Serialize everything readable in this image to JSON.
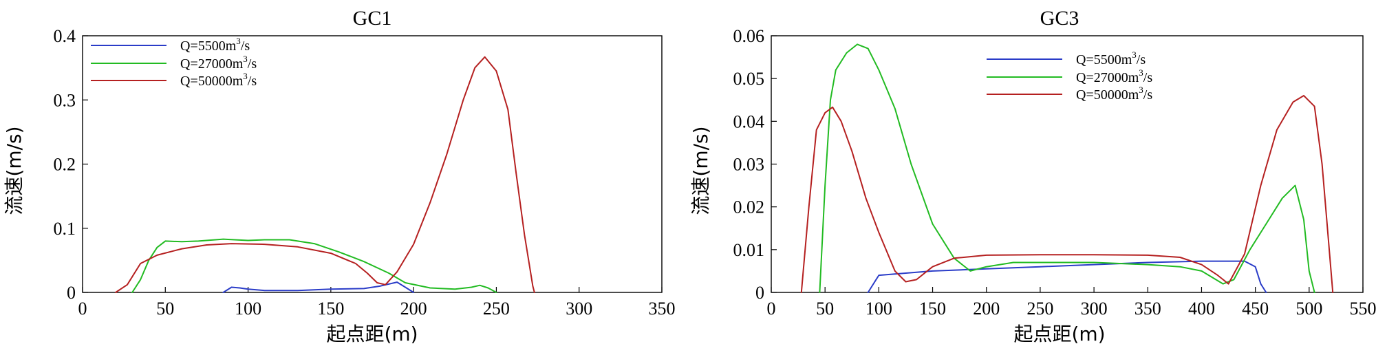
{
  "chart_data": [
    {
      "type": "line",
      "title": "GC1",
      "xlabel": "起点距(m)",
      "ylabel": "流速(m/s)",
      "xlim": [
        0,
        350
      ],
      "ylim": [
        0,
        0.4
      ],
      "xticks": [
        "0",
        "50",
        "100",
        "150",
        "200",
        "250",
        "300",
        "350"
      ],
      "yticks": [
        "0",
        "0.1",
        "0.2",
        "0.3",
        "0.4"
      ],
      "legend_position": "top-left",
      "series": [
        {
          "name": "Q=5500m3/s",
          "name_main_a": "Q=5500m",
          "name_sup": "3",
          "name_main_b": "/s",
          "color": "#2a3cc8",
          "points": [
            [
              85,
              0
            ],
            [
              90,
              0.008
            ],
            [
              95,
              0.007
            ],
            [
              100,
              0.005
            ],
            [
              110,
              0.003
            ],
            [
              130,
              0.003
            ],
            [
              150,
              0.005
            ],
            [
              170,
              0.006
            ],
            [
              180,
              0.01
            ],
            [
              190,
              0.016
            ],
            [
              195,
              0.008
            ],
            [
              200,
              0
            ]
          ]
        },
        {
          "name": "Q=27000m3/s",
          "name_main_a": "Q=27000m",
          "name_sup": "3",
          "name_main_b": "/s",
          "color": "#22bb22",
          "points": [
            [
              30,
              0
            ],
            [
              35,
              0.02
            ],
            [
              40,
              0.05
            ],
            [
              45,
              0.07
            ],
            [
              50,
              0.08
            ],
            [
              60,
              0.079
            ],
            [
              70,
              0.08
            ],
            [
              85,
              0.083
            ],
            [
              100,
              0.081
            ],
            [
              110,
              0.082
            ],
            [
              125,
              0.082
            ],
            [
              140,
              0.076
            ],
            [
              155,
              0.063
            ],
            [
              170,
              0.048
            ],
            [
              185,
              0.03
            ],
            [
              195,
              0.015
            ],
            [
              210,
              0.007
            ],
            [
              225,
              0.005
            ],
            [
              235,
              0.008
            ],
            [
              240,
              0.011
            ],
            [
              245,
              0.007
            ],
            [
              250,
              0
            ]
          ]
        },
        {
          "name": "Q=50000m3/s",
          "name_main_a": "Q=50000m",
          "name_sup": "3",
          "name_main_b": "/s",
          "color": "#b52020",
          "points": [
            [
              20,
              0
            ],
            [
              27,
              0.012
            ],
            [
              35,
              0.045
            ],
            [
              45,
              0.058
            ],
            [
              60,
              0.068
            ],
            [
              75,
              0.074
            ],
            [
              90,
              0.076
            ],
            [
              110,
              0.075
            ],
            [
              130,
              0.071
            ],
            [
              150,
              0.061
            ],
            [
              165,
              0.045
            ],
            [
              172,
              0.03
            ],
            [
              178,
              0.015
            ],
            [
              183,
              0.012
            ],
            [
              190,
              0.032
            ],
            [
              200,
              0.075
            ],
            [
              210,
              0.14
            ],
            [
              220,
              0.215
            ],
            [
              230,
              0.3
            ],
            [
              237,
              0.35
            ],
            [
              243,
              0.367
            ],
            [
              250,
              0.345
            ],
            [
              257,
              0.285
            ],
            [
              262,
              0.185
            ],
            [
              267,
              0.09
            ],
            [
              272,
              0.01
            ],
            [
              273,
              0
            ]
          ]
        }
      ]
    },
    {
      "type": "line",
      "title": "GC3",
      "xlabel": "起点距(m)",
      "ylabel": "流速(m/s)",
      "xlim": [
        0,
        550
      ],
      "ylim": [
        0,
        0.06
      ],
      "xticks": [
        "0",
        "50",
        "100",
        "150",
        "200",
        "250",
        "300",
        "350",
        "400",
        "450",
        "500",
        "550"
      ],
      "yticks": [
        "0",
        "0.01",
        "0.02",
        "0.03",
        "0.04",
        "0.05",
        "0.06"
      ],
      "legend_position": "top-center",
      "series": [
        {
          "name": "Q=5500m3/s",
          "name_main_a": "Q=5500m",
          "name_sup": "3",
          "name_main_b": "/s",
          "color": "#2a3cc8",
          "points": [
            [
              90,
              0
            ],
            [
              95,
              0.002
            ],
            [
              100,
              0.004
            ],
            [
              150,
              0.005
            ],
            [
              200,
              0.0055
            ],
            [
              250,
              0.006
            ],
            [
              300,
              0.0065
            ],
            [
              350,
              0.007
            ],
            [
              400,
              0.0073
            ],
            [
              440,
              0.0073
            ],
            [
              450,
              0.006
            ],
            [
              455,
              0.002
            ],
            [
              460,
              0
            ]
          ]
        },
        {
          "name": "Q=27000m3/s",
          "name_main_a": "Q=27000m",
          "name_sup": "3",
          "name_main_b": "/s",
          "color": "#22bb22",
          "points": [
            [
              45,
              0
            ],
            [
              50,
              0.025
            ],
            [
              55,
              0.045
            ],
            [
              60,
              0.052
            ],
            [
              70,
              0.056
            ],
            [
              80,
              0.058
            ],
            [
              90,
              0.057
            ],
            [
              100,
              0.052
            ],
            [
              115,
              0.043
            ],
            [
              130,
              0.03
            ],
            [
              150,
              0.016
            ],
            [
              170,
              0.008
            ],
            [
              185,
              0.005
            ],
            [
              200,
              0.006
            ],
            [
              225,
              0.007
            ],
            [
              250,
              0.007
            ],
            [
              300,
              0.007
            ],
            [
              350,
              0.0065
            ],
            [
              380,
              0.006
            ],
            [
              400,
              0.005
            ],
            [
              420,
              0.002
            ],
            [
              430,
              0.003
            ],
            [
              445,
              0.01
            ],
            [
              460,
              0.016
            ],
            [
              475,
              0.022
            ],
            [
              487,
              0.025
            ],
            [
              495,
              0.017
            ],
            [
              500,
              0.005
            ],
            [
              505,
              0
            ]
          ]
        },
        {
          "name": "Q=50000m3/s",
          "name_main_a": "Q=50000m",
          "name_sup": "3",
          "name_main_b": "/s",
          "color": "#b52020",
          "points": [
            [
              28,
              0
            ],
            [
              35,
              0.02
            ],
            [
              42,
              0.038
            ],
            [
              50,
              0.042
            ],
            [
              57,
              0.0433
            ],
            [
              65,
              0.04
            ],
            [
              75,
              0.033
            ],
            [
              88,
              0.022
            ],
            [
              100,
              0.014
            ],
            [
              115,
              0.005
            ],
            [
              125,
              0.0025
            ],
            [
              135,
              0.003
            ],
            [
              150,
              0.006
            ],
            [
              170,
              0.008
            ],
            [
              200,
              0.0087
            ],
            [
              250,
              0.0088
            ],
            [
              300,
              0.0088
            ],
            [
              350,
              0.0087
            ],
            [
              380,
              0.0082
            ],
            [
              400,
              0.0065
            ],
            [
              415,
              0.004
            ],
            [
              425,
              0.002
            ],
            [
              440,
              0.009
            ],
            [
              455,
              0.025
            ],
            [
              470,
              0.038
            ],
            [
              485,
              0.0445
            ],
            [
              495,
              0.046
            ],
            [
              505,
              0.0435
            ],
            [
              512,
              0.03
            ],
            [
              518,
              0.012
            ],
            [
              522,
              0
            ]
          ]
        }
      ]
    }
  ]
}
